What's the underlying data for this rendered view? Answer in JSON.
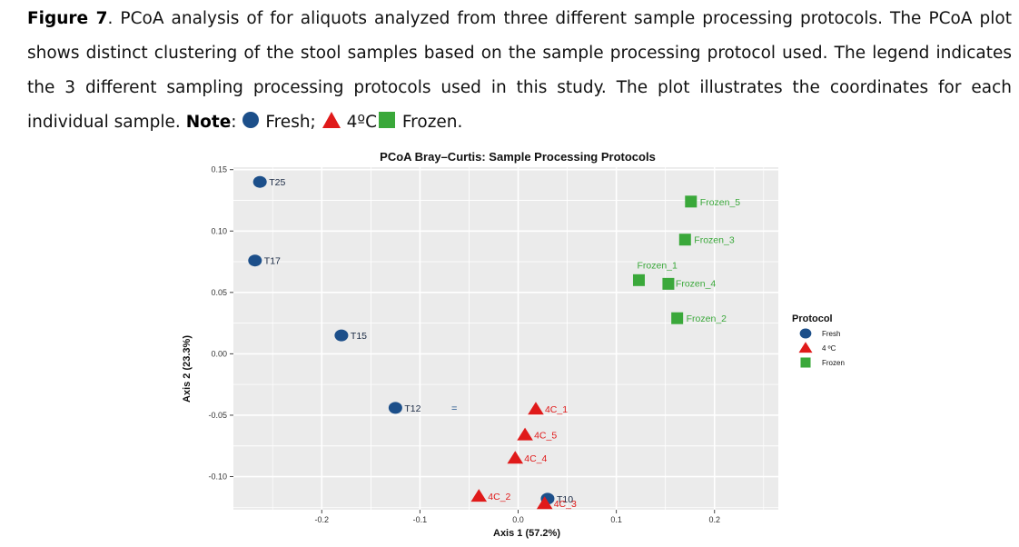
{
  "caption": {
    "figure_label": "Figure 7",
    "text": ". PCoA analysis of for aliquots analyzed from three different sample processing protocols. The PCoA plot shows distinct clustering of the stool samples based on the sample processing protocol used. The legend indicates the 3 different sampling processing protocols used in this study. The plot illustrates the coordinates for each individual sample.",
    "note_label": "Note",
    "note_sep": ":",
    "note_fresh": "Fresh;",
    "note_4c": "4ºC",
    "note_frozen": "Frozen."
  },
  "colors": {
    "fresh": "#1c4f8a",
    "c4": "#e01a1a",
    "frozen": "#3aa83a",
    "panel": "#ebebeb",
    "grid": "#ffffff"
  },
  "chart_data": {
    "type": "scatter",
    "title": "PCoA Bray–Curtis: Sample Processing Protocols",
    "xlabel": "Axis 1 (57.2%)",
    "ylabel": "Axis 2 (23.3%)",
    "xlim": [
      -0.29,
      0.265
    ],
    "ylim": [
      -0.127,
      0.152
    ],
    "x_ticks": [
      -0.2,
      -0.1,
      0.0,
      0.1,
      0.2
    ],
    "x_tick_labels": [
      "-0.2",
      "-0.1",
      "0.0",
      "0.1",
      "0.2"
    ],
    "y_ticks": [
      0.15,
      0.1,
      0.05,
      0.0,
      -0.05,
      -0.1
    ],
    "y_tick_labels": [
      "0.15",
      "0.10",
      "0.05",
      "0.00",
      "-0.05",
      "-0.10"
    ],
    "grid": true,
    "legend": {
      "title": "Protocol",
      "position": "right",
      "entries": [
        {
          "label": "Fresh",
          "shape": "circle",
          "series": "fresh"
        },
        {
          "label": "4 ºC",
          "shape": "triangle",
          "series": "c4"
        },
        {
          "label": "Frozen",
          "shape": "square",
          "series": "frozen"
        }
      ]
    },
    "series": [
      {
        "name": "Fresh",
        "key": "fresh",
        "shape": "circle",
        "points": [
          {
            "label": "T25",
            "x": -0.263,
            "y": 0.14
          },
          {
            "label": "T17",
            "x": -0.268,
            "y": 0.076
          },
          {
            "label": "T15",
            "x": -0.18,
            "y": 0.015
          },
          {
            "label": "T12",
            "x": -0.125,
            "y": -0.044
          },
          {
            "label": "T10",
            "x": 0.03,
            "y": -0.118
          }
        ]
      },
      {
        "name": "4 ºC",
        "key": "c4",
        "shape": "triangle",
        "points": [
          {
            "label": "4C_1",
            "x": 0.018,
            "y": -0.045
          },
          {
            "label": "4C_5",
            "x": 0.007,
            "y": -0.066
          },
          {
            "label": "4C_4",
            "x": -0.003,
            "y": -0.085
          },
          {
            "label": "4C_2",
            "x": -0.04,
            "y": -0.116
          },
          {
            "label": "4C_3",
            "x": 0.027,
            "y": -0.122
          }
        ]
      },
      {
        "name": "Frozen",
        "key": "frozen",
        "shape": "square",
        "points": [
          {
            "label": "Frozen_5",
            "x": 0.176,
            "y": 0.124
          },
          {
            "label": "Frozen_3",
            "x": 0.17,
            "y": 0.093
          },
          {
            "label": "Frozen_1",
            "x": 0.123,
            "y": 0.06
          },
          {
            "label": "Frozen_4",
            "x": 0.153,
            "y": 0.057
          },
          {
            "label": "Frozen_2",
            "x": 0.162,
            "y": 0.029
          }
        ]
      }
    ],
    "annotations": [
      {
        "text": "=",
        "x": -0.065,
        "y": -0.044
      }
    ]
  }
}
